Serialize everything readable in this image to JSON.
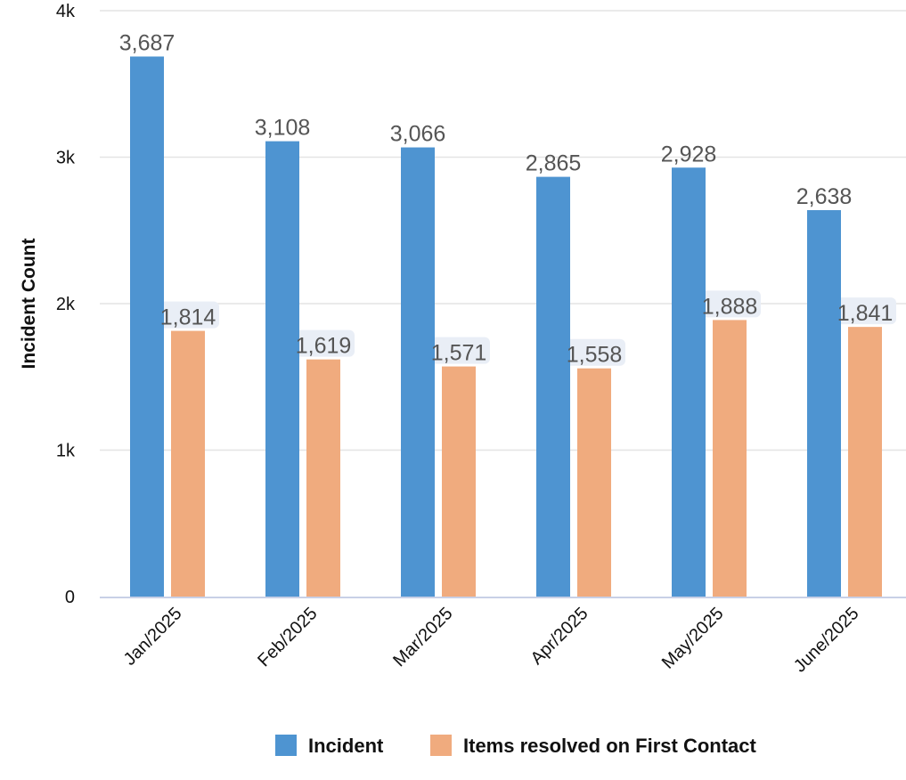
{
  "chart_data": {
    "type": "bar",
    "title": "",
    "xlabel": "",
    "ylabel": "Incident Count",
    "categories": [
      "Jan/2025",
      "Feb/2025",
      "Mar/2025",
      "Apr/2025",
      "May/2025",
      "June/2025"
    ],
    "series": [
      {
        "name": "Incident",
        "color": "#4e94d1",
        "values": [
          3687,
          3108,
          3066,
          2865,
          2928,
          2638
        ],
        "labels": [
          "3,687",
          "3,108",
          "3,066",
          "2,865",
          "2,928",
          "2,638"
        ]
      },
      {
        "name": "Items resolved on First Contact",
        "color": "#f0ab7e",
        "values": [
          1814,
          1619,
          1571,
          1558,
          1888,
          1841
        ],
        "labels": [
          "1,814",
          "1,619",
          "1,571",
          "1,558",
          "1,888",
          "1,841"
        ]
      }
    ],
    "ylim": [
      0,
      4000
    ],
    "yticks": [
      0,
      1000,
      2000,
      3000,
      4000
    ],
    "ytick_labels": [
      "0",
      "1k",
      "2k",
      "3k",
      "4k"
    ],
    "grid": true,
    "legend_position": "bottom-center",
    "gridline_color": "#e4e4e4",
    "axis_color": "#c8d0e6"
  }
}
